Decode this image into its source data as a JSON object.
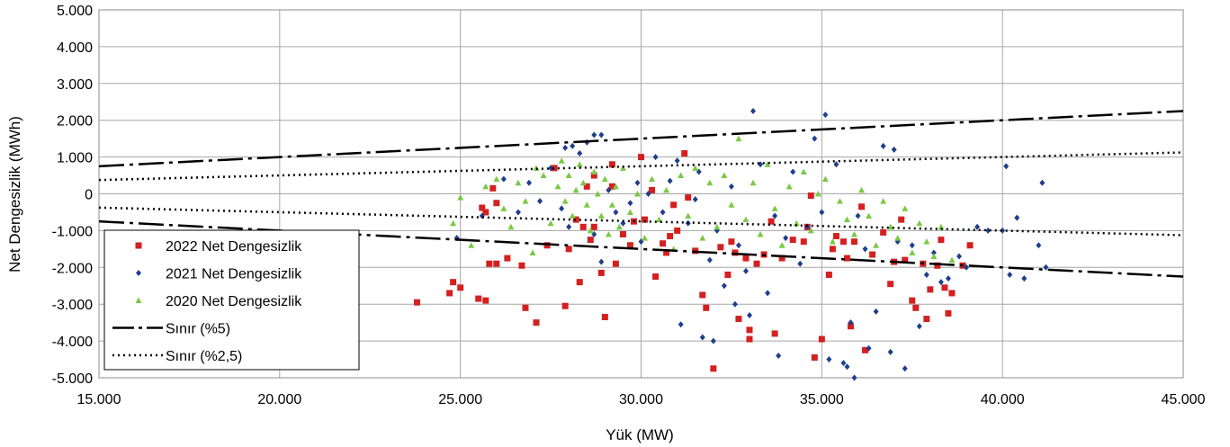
{
  "chart_data": {
    "type": "scatter",
    "xlabel": "Yük (MW)",
    "ylabel": "Net Dengesizlik (MWh)",
    "xlim": [
      15000,
      45000
    ],
    "ylim": [
      -5000,
      5000
    ],
    "x_ticks": [
      15000,
      20000,
      25000,
      30000,
      35000,
      40000,
      45000
    ],
    "y_ticks": [
      -5000,
      -4000,
      -3000,
      -2000,
      -1000,
      0,
      1000,
      2000,
      3000,
      4000,
      5000
    ],
    "x_tick_labels": [
      "15.000",
      "20.000",
      "25.000",
      "30.000",
      "35.000",
      "40.000",
      "45.000"
    ],
    "y_tick_labels": [
      "-5.000",
      "-4.000",
      "-3.000",
      "-2.000",
      "-1.000",
      "0",
      "1.000",
      "2.000",
      "3.000",
      "4.000",
      "5.000"
    ],
    "grid": true,
    "legend_position": "bottom-left",
    "series": [
      {
        "name": "2022 Net Dengesizlik",
        "kind": "points",
        "marker": "square",
        "color": "#d42020",
        "points": [
          [
            23800,
            -2950
          ],
          [
            24700,
            -2700
          ],
          [
            24800,
            -2400
          ],
          [
            25000,
            -2550
          ],
          [
            25500,
            -2850
          ],
          [
            25700,
            -2900
          ],
          [
            25600,
            -380
          ],
          [
            25700,
            -500
          ],
          [
            25900,
            150
          ],
          [
            26000,
            -250
          ],
          [
            25800,
            -1900
          ],
          [
            26000,
            -1900
          ],
          [
            26300,
            -1750
          ],
          [
            26700,
            -1950
          ],
          [
            26800,
            -3100
          ],
          [
            27100,
            -3500
          ],
          [
            27400,
            -1400
          ],
          [
            27600,
            700
          ],
          [
            27900,
            -3050
          ],
          [
            28000,
            -1500
          ],
          [
            28200,
            -700
          ],
          [
            28300,
            -2400
          ],
          [
            28400,
            -900
          ],
          [
            28500,
            200
          ],
          [
            28600,
            -1250
          ],
          [
            28700,
            -900
          ],
          [
            28700,
            500
          ],
          [
            28900,
            -2150
          ],
          [
            29000,
            -3350
          ],
          [
            29200,
            800
          ],
          [
            29200,
            200
          ],
          [
            29300,
            -1900
          ],
          [
            29500,
            -1100
          ],
          [
            29700,
            -1400
          ],
          [
            29800,
            -750
          ],
          [
            30000,
            1000
          ],
          [
            30100,
            -700
          ],
          [
            30300,
            100
          ],
          [
            30400,
            -2250
          ],
          [
            30600,
            -1350
          ],
          [
            30700,
            -1600
          ],
          [
            30800,
            -1150
          ],
          [
            30900,
            -300
          ],
          [
            31000,
            -1000
          ],
          [
            31200,
            1100
          ],
          [
            31300,
            -100
          ],
          [
            31500,
            -1550
          ],
          [
            31700,
            -2750
          ],
          [
            31800,
            -3100
          ],
          [
            32000,
            -4750
          ],
          [
            32200,
            -1450
          ],
          [
            32400,
            -2200
          ],
          [
            32500,
            -1300
          ],
          [
            32600,
            -1600
          ],
          [
            32700,
            -3400
          ],
          [
            32900,
            -1750
          ],
          [
            33000,
            -3700
          ],
          [
            33000,
            -3950
          ],
          [
            33200,
            -1900
          ],
          [
            33400,
            -1650
          ],
          [
            33600,
            -750
          ],
          [
            33700,
            -3800
          ],
          [
            33900,
            -1750
          ],
          [
            34200,
            -1250
          ],
          [
            34500,
            -1300
          ],
          [
            34600,
            -900
          ],
          [
            34700,
            -50
          ],
          [
            34800,
            -4450
          ],
          [
            35000,
            -3950
          ],
          [
            35200,
            -2200
          ],
          [
            35300,
            -1500
          ],
          [
            35400,
            -1150
          ],
          [
            35600,
            -1300
          ],
          [
            35700,
            -1750
          ],
          [
            35800,
            -3600
          ],
          [
            35900,
            -1300
          ],
          [
            36100,
            -350
          ],
          [
            36200,
            -4250
          ],
          [
            36400,
            -1650
          ],
          [
            36700,
            -1050
          ],
          [
            36900,
            -2450
          ],
          [
            37000,
            -1850
          ],
          [
            37200,
            -700
          ],
          [
            37300,
            -1800
          ],
          [
            37500,
            -2900
          ],
          [
            37600,
            -3100
          ],
          [
            37800,
            -1900
          ],
          [
            37900,
            -3400
          ],
          [
            38000,
            -2600
          ],
          [
            38200,
            -1950
          ],
          [
            38300,
            -1250
          ],
          [
            38400,
            -2550
          ],
          [
            38500,
            -3250
          ],
          [
            38600,
            -2700
          ],
          [
            38900,
            -1950
          ],
          [
            39100,
            -1400
          ]
        ]
      },
      {
        "name": "2021 Net Dengesizlik",
        "kind": "points",
        "marker": "diamond",
        "color": "#1f3f8c",
        "points": [
          [
            24900,
            -1200
          ],
          [
            25600,
            -600
          ],
          [
            26200,
            400
          ],
          [
            26600,
            -500
          ],
          [
            26900,
            300
          ],
          [
            27200,
            -200
          ],
          [
            27500,
            700
          ],
          [
            27800,
            -400
          ],
          [
            27900,
            1250
          ],
          [
            28000,
            -900
          ],
          [
            28100,
            1300
          ],
          [
            28300,
            1100
          ],
          [
            28500,
            1400
          ],
          [
            28700,
            1600
          ],
          [
            28900,
            1600
          ],
          [
            28700,
            -1100
          ],
          [
            28900,
            -1850
          ],
          [
            29100,
            100
          ],
          [
            29300,
            -500
          ],
          [
            29500,
            -800
          ],
          [
            29700,
            -250
          ],
          [
            29900,
            300
          ],
          [
            30000,
            -1300
          ],
          [
            30200,
            0
          ],
          [
            30400,
            1000
          ],
          [
            30600,
            -500
          ],
          [
            30800,
            350
          ],
          [
            31000,
            900
          ],
          [
            31100,
            -3550
          ],
          [
            31300,
            -800
          ],
          [
            31500,
            -150
          ],
          [
            31600,
            600
          ],
          [
            31700,
            -3900
          ],
          [
            31900,
            -1800
          ],
          [
            32000,
            -4000
          ],
          [
            32100,
            -1000
          ],
          [
            32300,
            -2500
          ],
          [
            32500,
            200
          ],
          [
            32600,
            -3000
          ],
          [
            32700,
            -1400
          ],
          [
            32900,
            -2100
          ],
          [
            33000,
            -3300
          ],
          [
            33100,
            2250
          ],
          [
            33300,
            800
          ],
          [
            33500,
            -2700
          ],
          [
            33700,
            -600
          ],
          [
            33800,
            -4400
          ],
          [
            34000,
            -1200
          ],
          [
            34200,
            600
          ],
          [
            34400,
            -1900
          ],
          [
            34600,
            -900
          ],
          [
            34800,
            1500
          ],
          [
            35000,
            -500
          ],
          [
            35100,
            2150
          ],
          [
            35200,
            -4500
          ],
          [
            35400,
            800
          ],
          [
            35600,
            -4600
          ],
          [
            35700,
            -4700
          ],
          [
            35800,
            -3500
          ],
          [
            35900,
            -5000
          ],
          [
            36000,
            -600
          ],
          [
            36200,
            -1500
          ],
          [
            36300,
            -4200
          ],
          [
            36500,
            -3200
          ],
          [
            36700,
            1300
          ],
          [
            36900,
            -4300
          ],
          [
            37000,
            1200
          ],
          [
            37100,
            -1300
          ],
          [
            37300,
            -4750
          ],
          [
            37500,
            -1400
          ],
          [
            37700,
            -3600
          ],
          [
            37900,
            -2200
          ],
          [
            38100,
            -1600
          ],
          [
            38300,
            -2400
          ],
          [
            38500,
            -2300
          ],
          [
            38800,
            -1700
          ],
          [
            39000,
            -2000
          ],
          [
            39300,
            -900
          ],
          [
            39600,
            -1000
          ],
          [
            40000,
            -1000
          ],
          [
            40100,
            750
          ],
          [
            40200,
            -2200
          ],
          [
            40400,
            -650
          ],
          [
            40600,
            -2300
          ],
          [
            41000,
            -1400
          ],
          [
            41100,
            300
          ],
          [
            41200,
            -2000
          ]
        ]
      },
      {
        "name": "2020 Net Dengesizlik",
        "kind": "points",
        "marker": "triangle",
        "color": "#7ac943",
        "points": [
          [
            24800,
            -800
          ],
          [
            25000,
            -100
          ],
          [
            25300,
            -1400
          ],
          [
            25700,
            200
          ],
          [
            26000,
            400
          ],
          [
            26200,
            -400
          ],
          [
            26400,
            -900
          ],
          [
            26600,
            300
          ],
          [
            26800,
            -200
          ],
          [
            27000,
            -1600
          ],
          [
            27100,
            700
          ],
          [
            27300,
            500
          ],
          [
            27500,
            -800
          ],
          [
            27700,
            200
          ],
          [
            27800,
            900
          ],
          [
            27900,
            -200
          ],
          [
            28000,
            500
          ],
          [
            28100,
            -600
          ],
          [
            28200,
            100
          ],
          [
            28300,
            800
          ],
          [
            28400,
            300
          ],
          [
            28500,
            -300
          ],
          [
            28600,
            -1000
          ],
          [
            28700,
            600
          ],
          [
            28800,
            0
          ],
          [
            28900,
            -600
          ],
          [
            29000,
            400
          ],
          [
            29100,
            -1100
          ],
          [
            29200,
            -300
          ],
          [
            29300,
            200
          ],
          [
            29400,
            -900
          ],
          [
            29500,
            700
          ],
          [
            29700,
            -500
          ],
          [
            29900,
            0
          ],
          [
            30100,
            -1200
          ],
          [
            30300,
            400
          ],
          [
            30500,
            -700
          ],
          [
            30700,
            100
          ],
          [
            30900,
            -1500
          ],
          [
            31100,
            500
          ],
          [
            31300,
            -600
          ],
          [
            31500,
            700
          ],
          [
            31700,
            -1200
          ],
          [
            31900,
            300
          ],
          [
            32100,
            -900
          ],
          [
            32300,
            500
          ],
          [
            32500,
            -300
          ],
          [
            32700,
            1500
          ],
          [
            32900,
            -700
          ],
          [
            33100,
            300
          ],
          [
            33300,
            -1100
          ],
          [
            33500,
            800
          ],
          [
            33700,
            -400
          ],
          [
            33900,
            -1400
          ],
          [
            34100,
            200
          ],
          [
            34300,
            -800
          ],
          [
            34500,
            600
          ],
          [
            34700,
            -1000
          ],
          [
            34900,
            0
          ],
          [
            35100,
            400
          ],
          [
            35300,
            -1300
          ],
          [
            35500,
            -200
          ],
          [
            35700,
            -700
          ],
          [
            35900,
            -1100
          ],
          [
            36100,
            100
          ],
          [
            36300,
            -600
          ],
          [
            36500,
            -1400
          ],
          [
            36700,
            -200
          ],
          [
            36900,
            -900
          ],
          [
            37100,
            -1200
          ],
          [
            37300,
            -400
          ],
          [
            37500,
            -1600
          ],
          [
            37700,
            -800
          ],
          [
            37900,
            -1300
          ],
          [
            38100,
            -1700
          ],
          [
            38300,
            -900
          ],
          [
            38600,
            -1800
          ]
        ]
      },
      {
        "name": "Sınır (%5)",
        "kind": "line",
        "style": "dashdot",
        "color": "#000000",
        "lines": [
          [
            [
              15000,
              750
            ],
            [
              45000,
              2250
            ]
          ],
          [
            [
              15000,
              -750
            ],
            [
              45000,
              -2250
            ]
          ]
        ]
      },
      {
        "name": "Sınır (%2,5)",
        "kind": "line",
        "style": "dotted",
        "color": "#000000",
        "lines": [
          [
            [
              15000,
              375
            ],
            [
              45000,
              1125
            ]
          ],
          [
            [
              15000,
              -375
            ],
            [
              45000,
              -1125
            ]
          ]
        ]
      }
    ]
  }
}
